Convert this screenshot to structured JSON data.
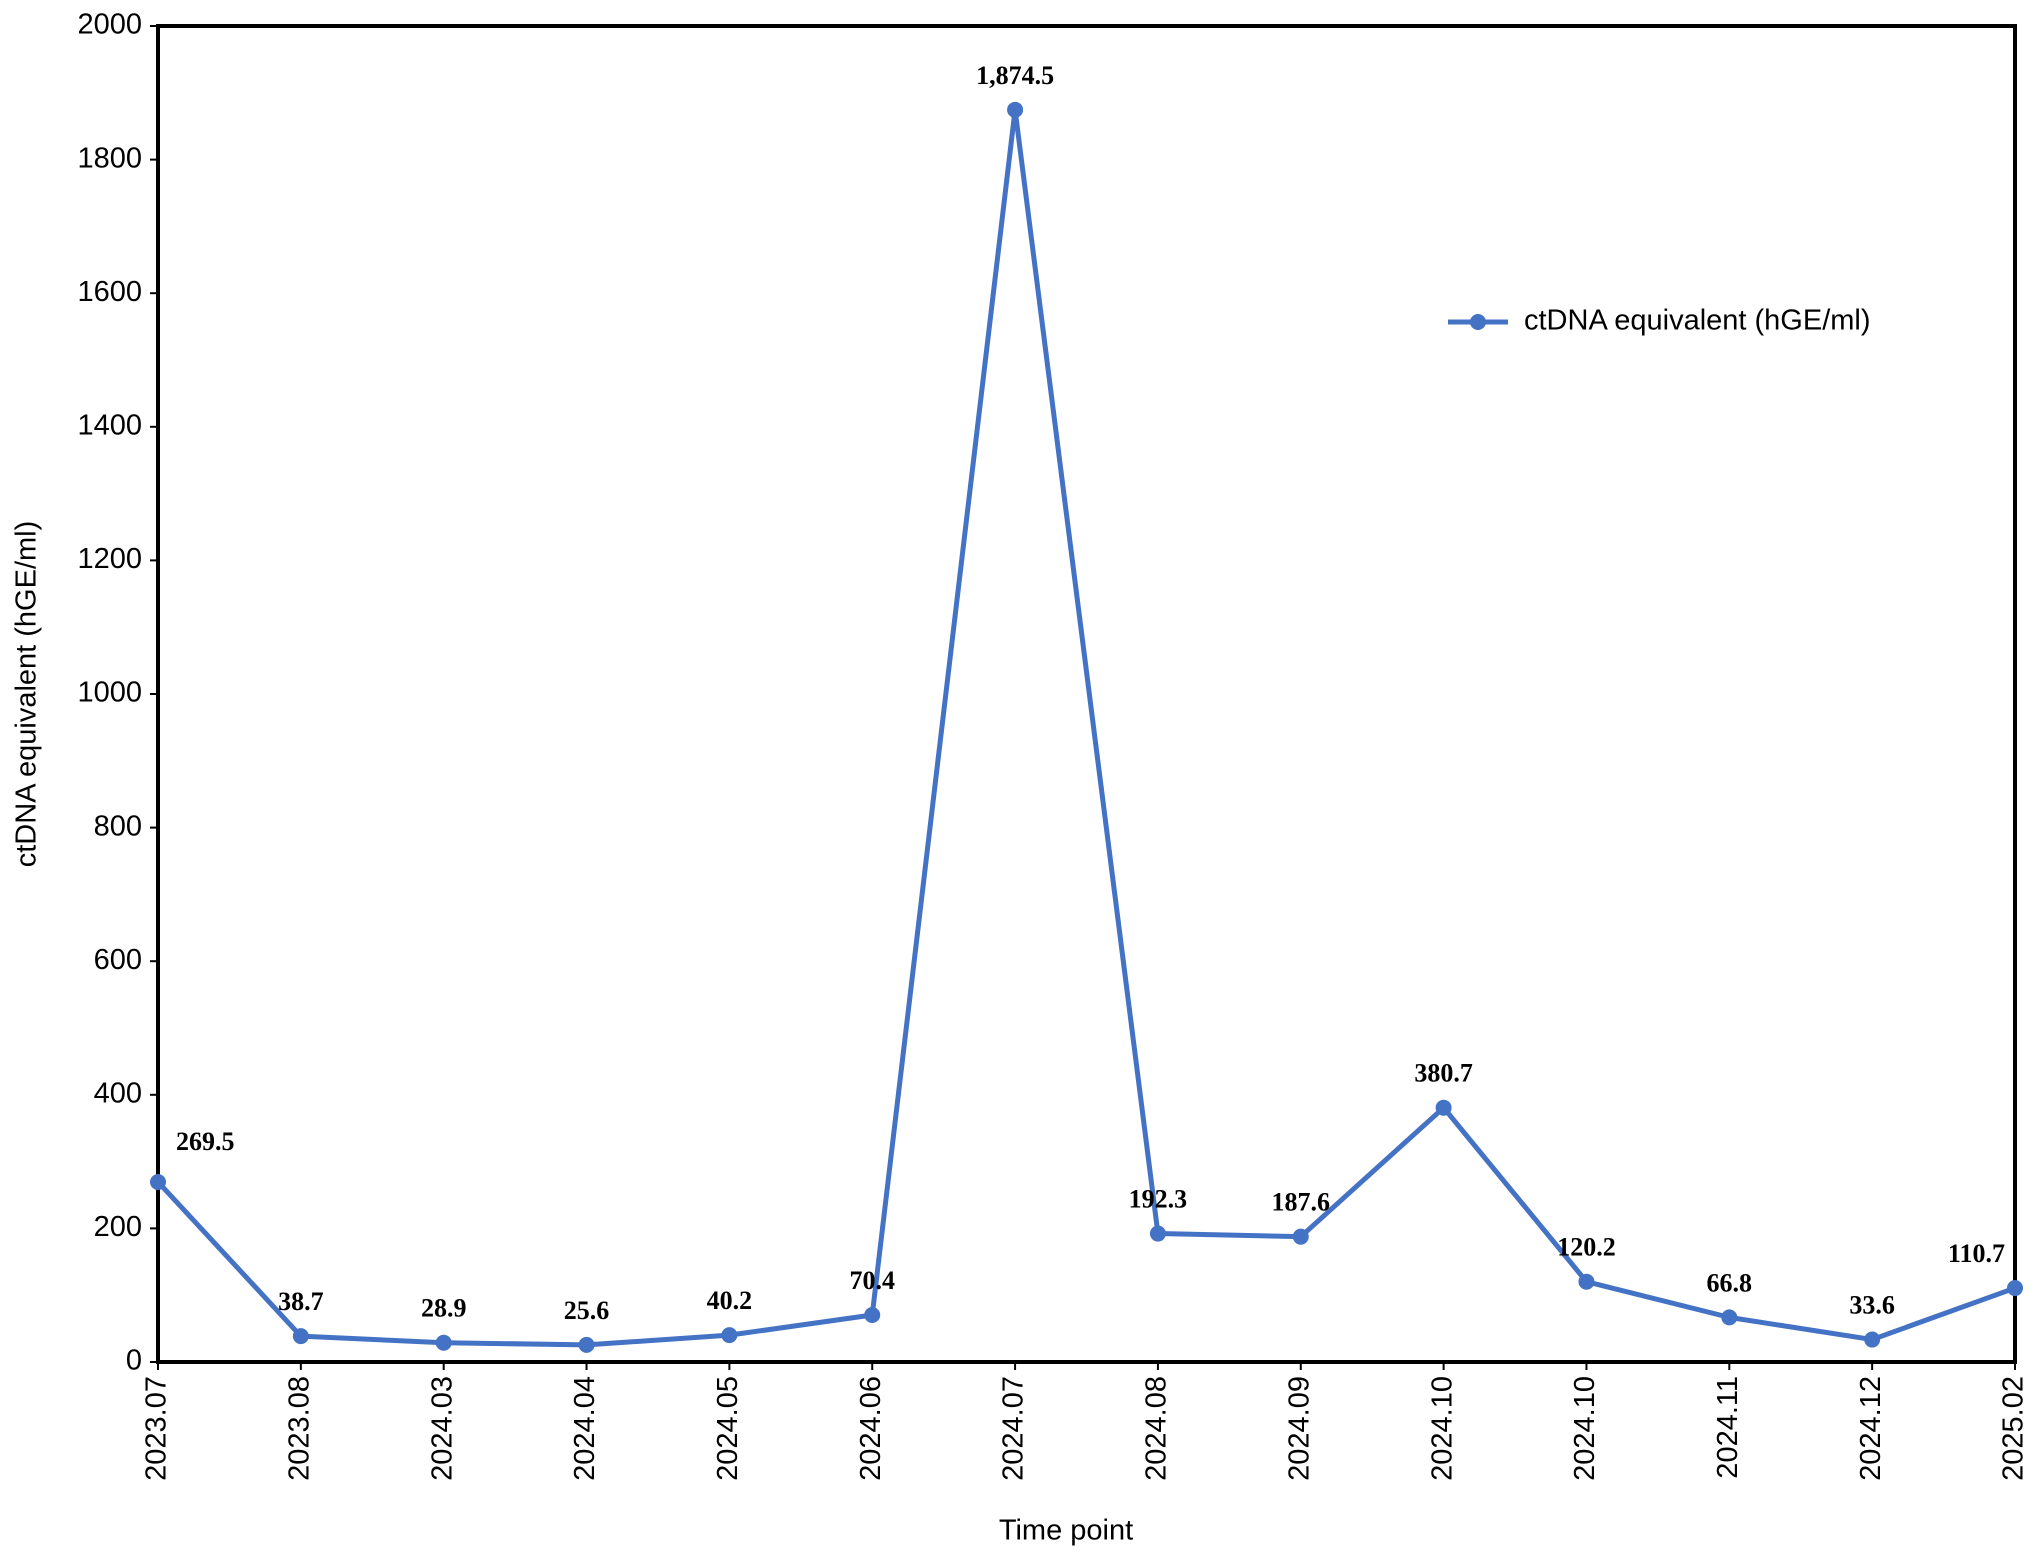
{
  "chart_data": {
    "type": "line",
    "x_label": "Time point",
    "y_label": "ctDNA equivalent (hGE/ml)",
    "categories": [
      "2023.07",
      "2023.08",
      "2024.03",
      "2024.04",
      "2024.05",
      "2024.06",
      "2024.07",
      "2024.08",
      "2024.09",
      "2024.10",
      "2024.10",
      "2024.11",
      "2024.12",
      "2025.02"
    ],
    "series": [
      {
        "name": "ctDNA equivalent (hGE/ml)",
        "color": "#4472c4",
        "values": [
          269.5,
          38.7,
          28.9,
          25.6,
          40.2,
          70.4,
          1874.5,
          192.3,
          187.6,
          380.7,
          120.2,
          66.8,
          33.6,
          110.7
        ],
        "value_labels": [
          "269.5",
          "38.7",
          "28.9",
          "25.6",
          "40.2",
          "70.4",
          "1,874.5",
          "192.3",
          "187.6",
          "380.7",
          "120.2",
          "66.8",
          "33.6",
          "110.7"
        ]
      }
    ],
    "ylim": [
      0,
      2000
    ],
    "yticks": [
      0,
      200,
      400,
      600,
      800,
      1000,
      1200,
      1400,
      1600,
      1800,
      2000
    ],
    "grid": false
  }
}
